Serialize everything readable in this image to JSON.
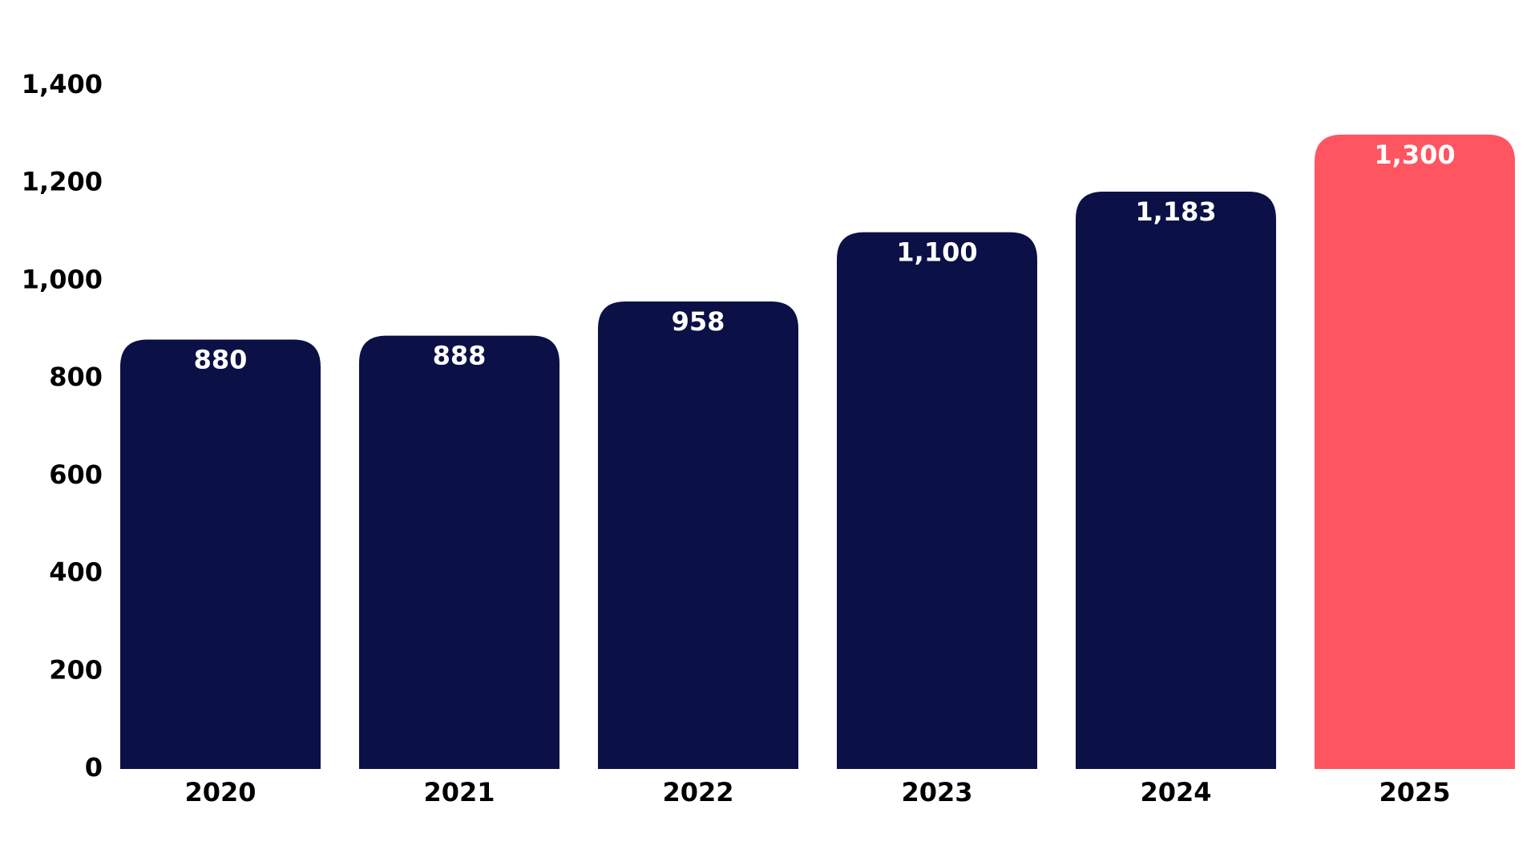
{
  "chart_data": {
    "type": "bar",
    "categories": [
      "2020",
      "2021",
      "2022",
      "2023",
      "2024",
      "2025"
    ],
    "values": [
      880,
      888,
      958,
      1100,
      1183,
      1300
    ],
    "value_labels": [
      "880",
      "888",
      "958",
      "1,100",
      "1,183",
      "1,300"
    ],
    "colors": [
      "#0b1046",
      "#0b1046",
      "#0b1046",
      "#0b1046",
      "#0b1046",
      "#ff5561"
    ],
    "ylim": [
      0,
      1400
    ],
    "yticks": [
      0,
      200,
      400,
      600,
      800,
      {
        "value": 1000,
        "label": "1,000"
      },
      {
        "value": 1200,
        "label": "1,200"
      },
      {
        "value": 1400,
        "label": "1,400"
      }
    ],
    "grid": false
  }
}
